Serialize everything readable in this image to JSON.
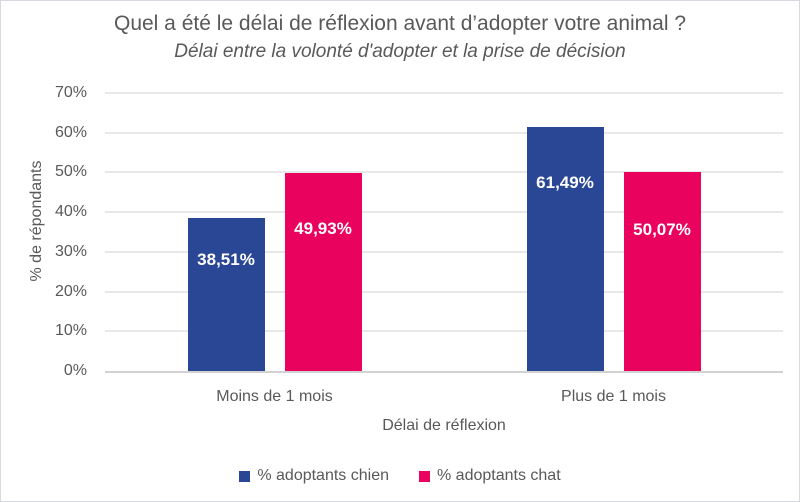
{
  "chart_data": {
    "type": "bar",
    "title": "Quel a été le délai de réflexion avant d’adopter votre animal ?",
    "subtitle": "Délai entre la volonté d'adopter et la prise de décision",
    "categories": [
      "Moins de 1 mois",
      "Plus de 1 mois"
    ],
    "series": [
      {
        "name": "% adoptants chien",
        "color": "#2A4796",
        "values": [
          38.51,
          61.49
        ],
        "data_labels": [
          "38,51%",
          "61,49%"
        ]
      },
      {
        "name": "% adoptants chat",
        "color": "#E9035E",
        "values": [
          49.93,
          50.07
        ],
        "data_labels": [
          "49,93%",
          "50,07%"
        ]
      }
    ],
    "xlabel": "Délai de réflexion",
    "ylabel": "% de répondants",
    "ylim": [
      0,
      70
    ],
    "ytick_step": 10,
    "ytick_labels": [
      "0%",
      "10%",
      "20%",
      "30%",
      "40%",
      "50%",
      "60%",
      "70%"
    ],
    "grid": true,
    "legend_position": "bottom"
  },
  "colors": {
    "chien_blue": "#2A4796",
    "chat_pink": "#E9035E",
    "text": "#595959",
    "gridline": "#E8E8E8",
    "axis_line": "#D2D2D2",
    "data_label_text": "#FFFFFF",
    "background": "#FFFFFF",
    "border": "#D6D9E0"
  }
}
